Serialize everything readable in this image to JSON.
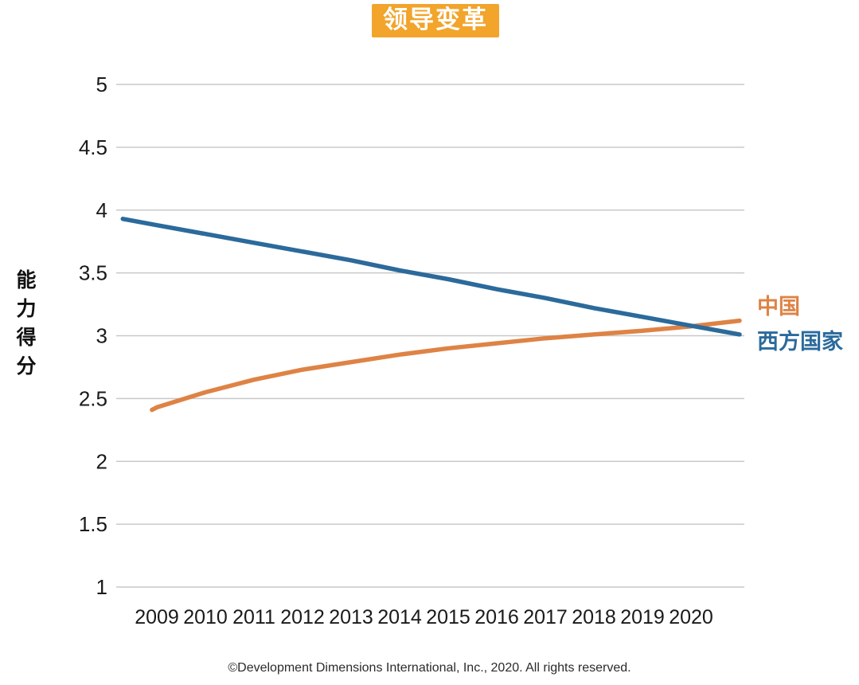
{
  "title": "领导变革",
  "y_axis_label": "能力得分",
  "footer": "©Development Dimensions International, Inc., 2020. All rights reserved.",
  "colors": {
    "title_bg": "#F2A42B",
    "title_text": "#FFFFFF",
    "grid": "#C9C9C9",
    "axis_text": "#1A1A1A",
    "china_orange": "#DE8345",
    "west_blue": "#2B6A9B"
  },
  "chart_data": {
    "type": "line",
    "title": "领导变革",
    "xlabel": "",
    "ylabel": "能力得分",
    "ylim": [
      1,
      5
    ],
    "yticks": [
      5,
      4.5,
      4,
      3.5,
      3,
      2.5,
      2,
      1.5,
      1
    ],
    "categories": [
      2009,
      2010,
      2011,
      2012,
      2013,
      2014,
      2015,
      2016,
      2017,
      2018,
      2019,
      2020
    ],
    "grid": true,
    "legend_position": "right",
    "series": [
      {
        "name": "中国",
        "color": "#DE8345",
        "points": [
          [
            2008.9,
            2.41
          ],
          [
            2009,
            2.43
          ],
          [
            2010,
            2.55
          ],
          [
            2011,
            2.65
          ],
          [
            2012,
            2.73
          ],
          [
            2013,
            2.79
          ],
          [
            2014,
            2.85
          ],
          [
            2015,
            2.9
          ],
          [
            2016,
            2.94
          ],
          [
            2017,
            2.98
          ],
          [
            2018,
            3.01
          ],
          [
            2019,
            3.04
          ],
          [
            2020,
            3.075
          ],
          [
            2021,
            3.12
          ]
        ]
      },
      {
        "name": "西方国家",
        "color": "#2B6A9B",
        "points": [
          [
            2008.3,
            3.93
          ],
          [
            2009,
            3.88
          ],
          [
            2010,
            3.81
          ],
          [
            2011,
            3.74
          ],
          [
            2012,
            3.67
          ],
          [
            2013,
            3.6
          ],
          [
            2014,
            3.52
          ],
          [
            2015,
            3.45
          ],
          [
            2016,
            3.37
          ],
          [
            2017,
            3.3
          ],
          [
            2018,
            3.22
          ],
          [
            2019,
            3.15
          ],
          [
            2020,
            3.08
          ],
          [
            2021,
            3.01
          ]
        ]
      }
    ]
  }
}
